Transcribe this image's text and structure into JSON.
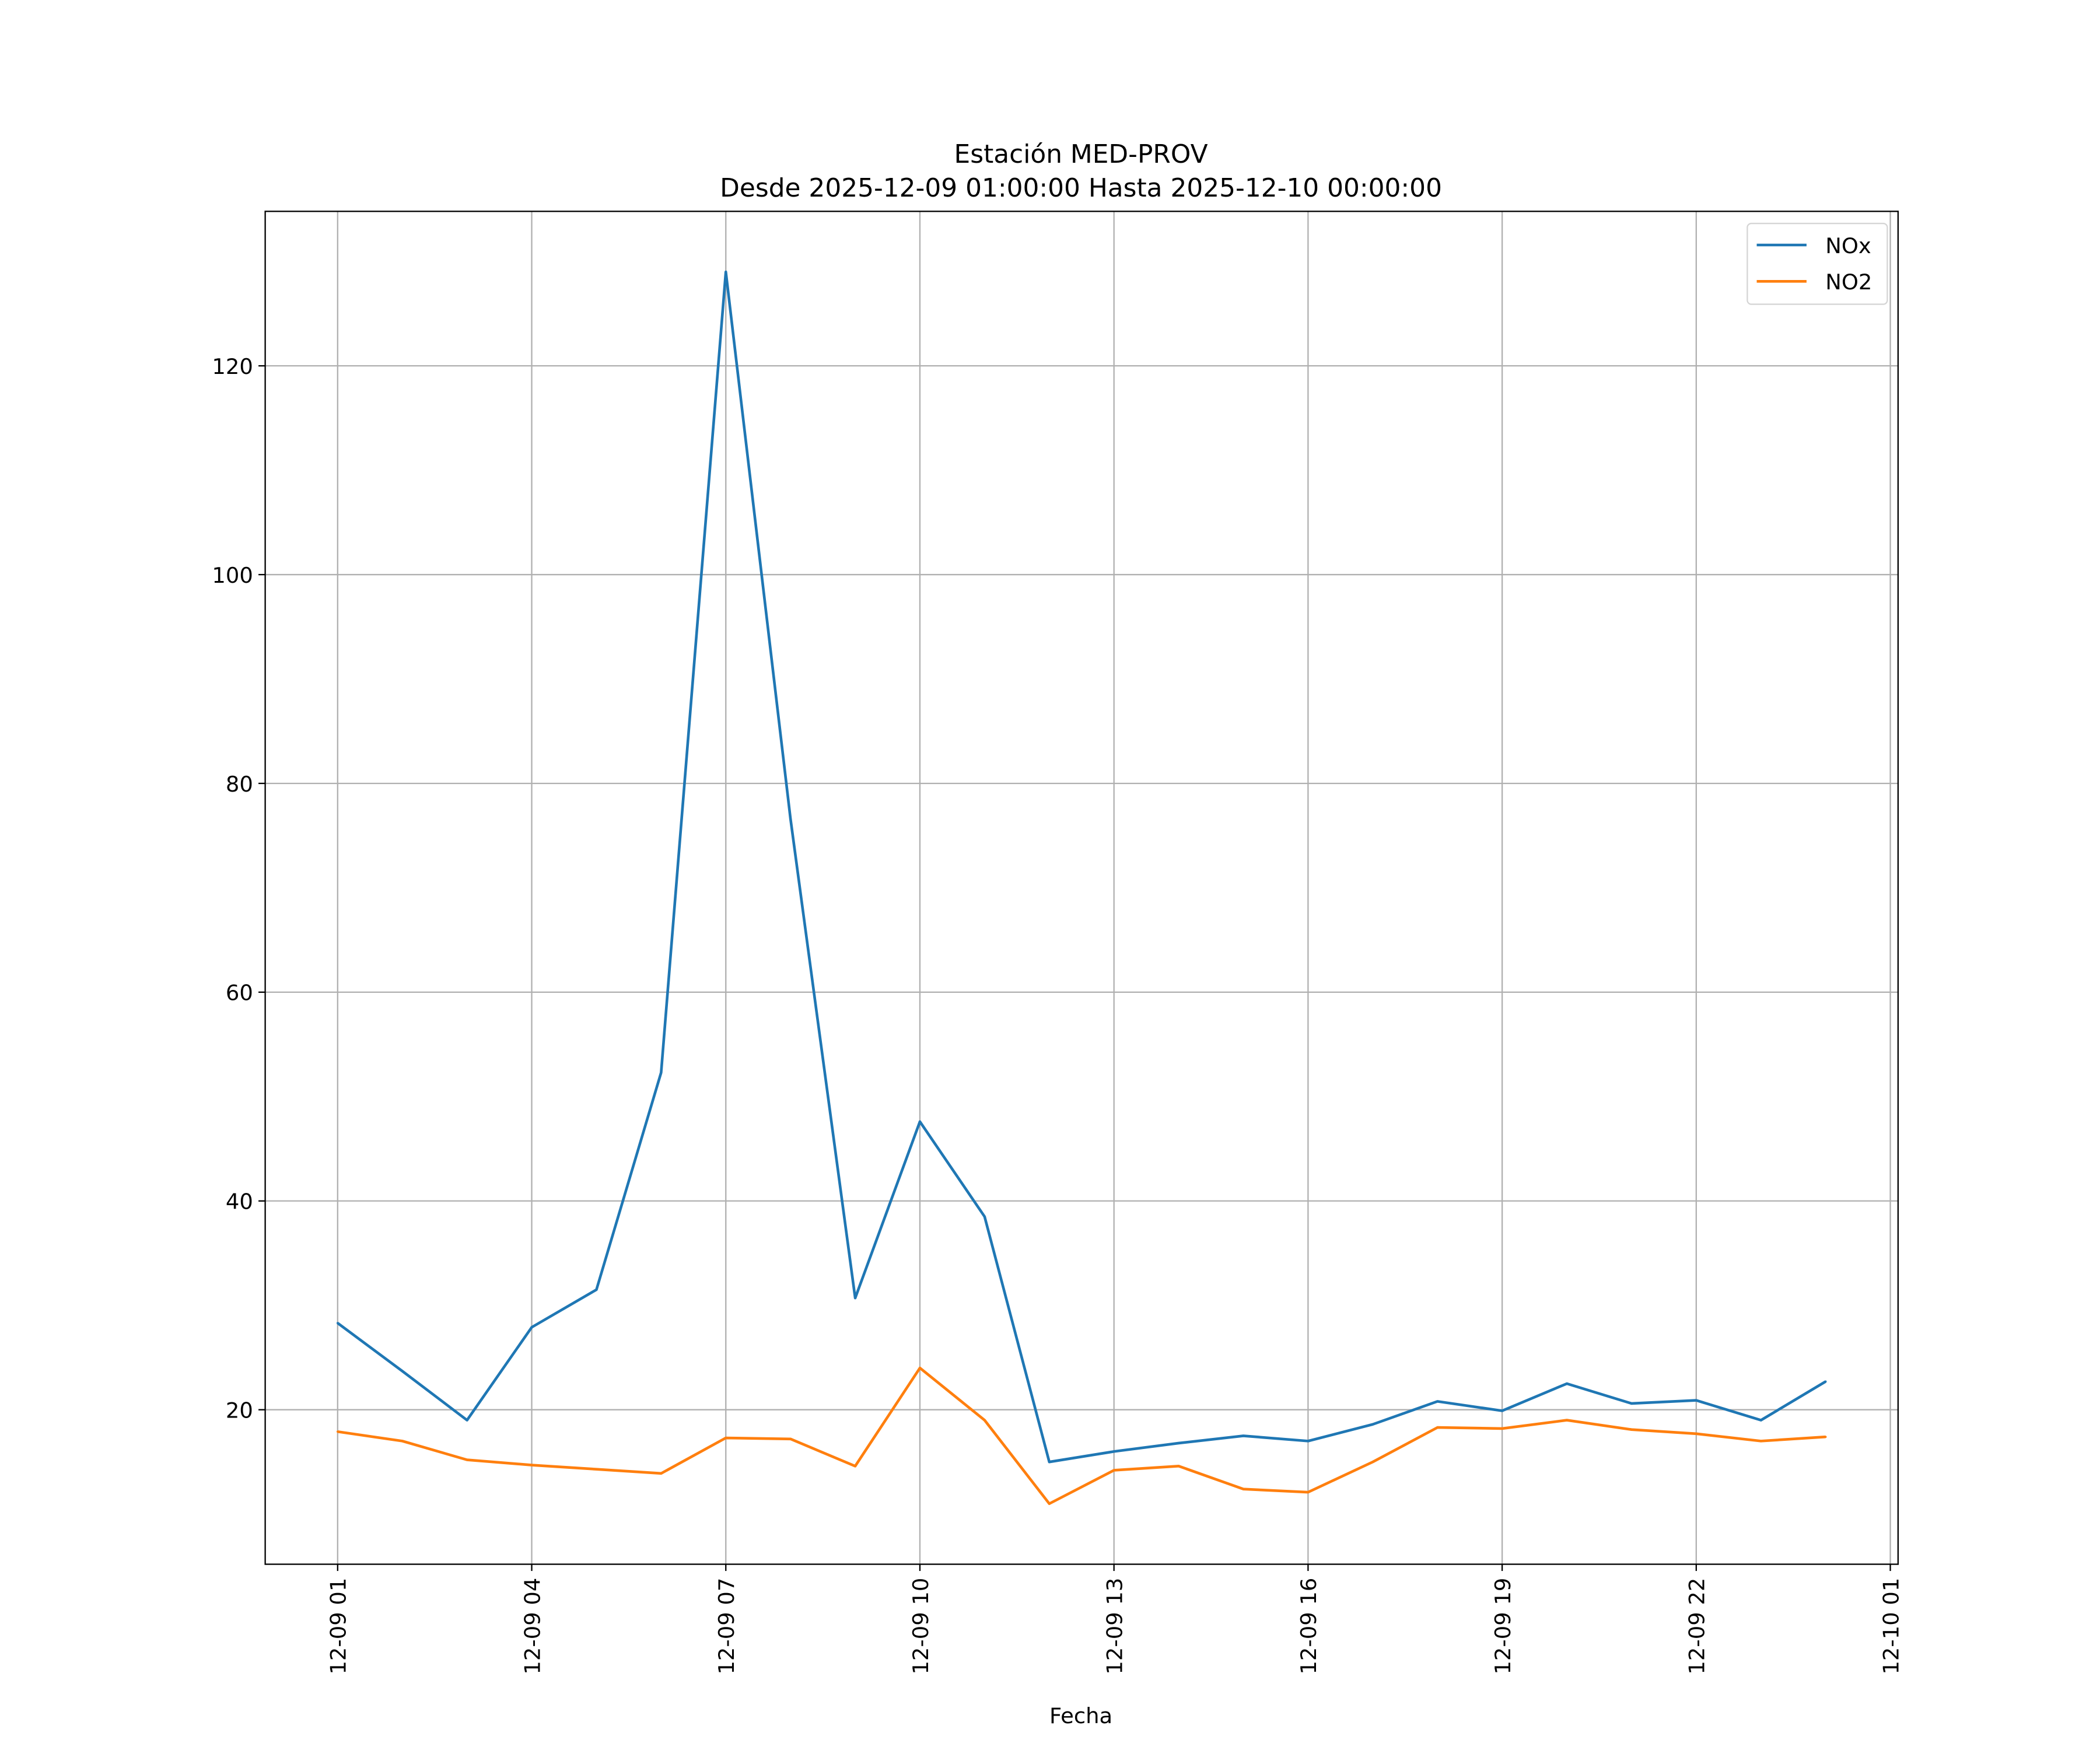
{
  "chart_data": {
    "type": "line",
    "title": "Estación MED-PROV",
    "subtitle": "Desde 2025-12-09 01:00:00 Hasta 2025-12-10 00:00:00",
    "xlabel": "Fecha",
    "ylabel": "",
    "x": [
      "12-09 01",
      "12-09 02",
      "12-09 03",
      "12-09 04",
      "12-09 05",
      "12-09 06",
      "12-09 07",
      "12-09 08",
      "12-09 09",
      "12-09 10",
      "12-09 11",
      "12-09 12",
      "12-09 13",
      "12-09 14",
      "12-09 15",
      "12-09 16",
      "12-09 17",
      "12-09 18",
      "12-09 19",
      "12-09 20",
      "12-09 21",
      "12-09 22",
      "12-09 23",
      "12-10 00"
    ],
    "x_hours": [
      0,
      1,
      2,
      3,
      4,
      5,
      6,
      7,
      8,
      9,
      10,
      11,
      12,
      13,
      14,
      15,
      16,
      17,
      18,
      19,
      20,
      21,
      22,
      23
    ],
    "series": [
      {
        "name": "NOx",
        "color": "#1f77b4",
        "values": [
          28.3,
          23.7,
          19.0,
          27.9,
          31.5,
          52.3,
          129.0,
          76.6,
          30.7,
          47.6,
          38.5,
          15.0,
          16.0,
          16.8,
          17.5,
          17.0,
          18.6,
          20.8,
          19.9,
          22.5,
          20.6,
          20.9,
          19.0,
          22.7
        ]
      },
      {
        "name": "NO2",
        "color": "#ff7f0e",
        "values": [
          17.9,
          17.0,
          15.2,
          14.7,
          14.3,
          13.9,
          17.3,
          17.2,
          14.6,
          24.0,
          19.0,
          11.0,
          14.2,
          14.6,
          12.4,
          12.1,
          15.0,
          18.3,
          18.2,
          19.0,
          18.1,
          17.7,
          17.0,
          17.4
        ]
      }
    ],
    "xticks": [
      {
        "hour": 0,
        "label": "12-09 01"
      },
      {
        "hour": 3,
        "label": "12-09 04"
      },
      {
        "hour": 6,
        "label": "12-09 07"
      },
      {
        "hour": 9,
        "label": "12-09 10"
      },
      {
        "hour": 12,
        "label": "12-09 13"
      },
      {
        "hour": 15,
        "label": "12-09 16"
      },
      {
        "hour": 18,
        "label": "12-09 19"
      },
      {
        "hour": 21,
        "label": "12-09 22"
      },
      {
        "hour": 24,
        "label": "12-10 01"
      }
    ],
    "yticks": [
      20,
      40,
      60,
      80,
      100,
      120
    ],
    "xlim_hours": [
      -1.12,
      24.12
    ],
    "ylim": [
      5.2,
      134.8
    ],
    "grid": true,
    "legend": "top-right"
  }
}
